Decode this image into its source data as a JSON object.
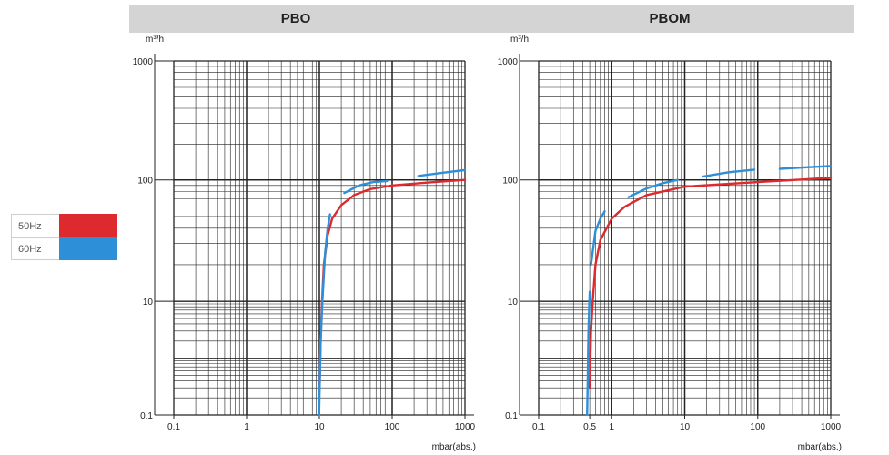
{
  "headers": [
    "PBO",
    "PBOM"
  ],
  "legend": [
    {
      "label": "50Hz",
      "color": "#dd2a2e"
    },
    {
      "label": "60Hz",
      "color": "#2d8fd8"
    }
  ],
  "chart_data": [
    {
      "type": "line",
      "title": "PBO",
      "ylabel": "m³/h",
      "xlabel": "mbar(abs.)",
      "x_scale": "log",
      "y_scale": "log",
      "xlim": [
        0.1,
        1000
      ],
      "ylim": [
        0.1,
        1000
      ],
      "x_ticks": [
        "0.1",
        "1",
        "10",
        "100",
        "1000"
      ],
      "y_ticks": [
        "0.1",
        "10",
        "100",
        "1000"
      ],
      "grid": true,
      "series": [
        {
          "name": "50Hz",
          "color": "#dd2a2e",
          "segments": [
            [
              [
                10.1,
                0.35
              ],
              [
                10.4,
                2
              ],
              [
                10.8,
                8
              ],
              [
                11.5,
                20
              ],
              [
                13,
                35
              ],
              [
                15,
                48
              ],
              [
                20,
                62
              ],
              [
                30,
                75
              ],
              [
                50,
                84
              ],
              [
                100,
                90
              ],
              [
                300,
                95
              ],
              [
                1000,
                100
              ]
            ]
          ]
        },
        {
          "name": "60Hz",
          "color": "#2d8fd8",
          "segments": [
            [
              [
                9.9,
                0.1
              ],
              [
                10.1,
                0.3
              ],
              [
                10.4,
                2
              ],
              [
                11,
                10
              ],
              [
                12,
                25
              ],
              [
                13,
                40
              ],
              [
                14,
                52
              ]
            ],
            [
              [
                22,
                78
              ],
              [
                35,
                90
              ],
              [
                55,
                96
              ],
              [
                85,
                98
              ]
            ],
            [
              [
                230,
                108
              ],
              [
                500,
                115
              ],
              [
                1000,
                121
              ]
            ]
          ]
        }
      ]
    },
    {
      "type": "line",
      "title": "PBOM",
      "ylabel": "m³/h",
      "xlabel": "mbar(abs.)",
      "x_scale": "log",
      "y_scale": "log",
      "xlim": [
        0.1,
        1000
      ],
      "ylim": [
        0.1,
        1000
      ],
      "x_ticks": [
        "0.1",
        "0.5",
        "1",
        "10",
        "100",
        "1000"
      ],
      "y_ticks": [
        "0.1",
        "10",
        "100",
        "1000"
      ],
      "grid": true,
      "series": [
        {
          "name": "50Hz",
          "color": "#dd2a2e",
          "segments": [
            [
              [
                0.5,
                0.3
              ],
              [
                0.52,
                3
              ],
              [
                0.55,
                10
              ],
              [
                0.6,
                20
              ],
              [
                0.7,
                32
              ],
              [
                1,
                48
              ],
              [
                1.5,
                60
              ],
              [
                3,
                75
              ],
              [
                10,
                88
              ],
              [
                100,
                96
              ],
              [
                1000,
                104
              ]
            ]
          ]
        },
        {
          "name": "60Hz",
          "color": "#2d8fd8",
          "segments": [
            [
              [
                0.46,
                0.1
              ],
              [
                0.47,
                0.4
              ],
              [
                0.48,
                3
              ],
              [
                0.5,
                12
              ]
            ],
            [
              [
                0.52,
                20
              ],
              [
                0.6,
                38
              ],
              [
                0.7,
                48
              ],
              [
                0.8,
                55
              ]
            ],
            [
              [
                1.7,
                72
              ],
              [
                3,
                85
              ],
              [
                5,
                94
              ],
              [
                8,
                100
              ]
            ],
            [
              [
                18,
                107
              ],
              [
                40,
                116
              ],
              [
                90,
                122
              ]
            ],
            [
              [
                200,
                124
              ],
              [
                500,
                128
              ],
              [
                1000,
                131
              ]
            ]
          ]
        }
      ]
    }
  ]
}
